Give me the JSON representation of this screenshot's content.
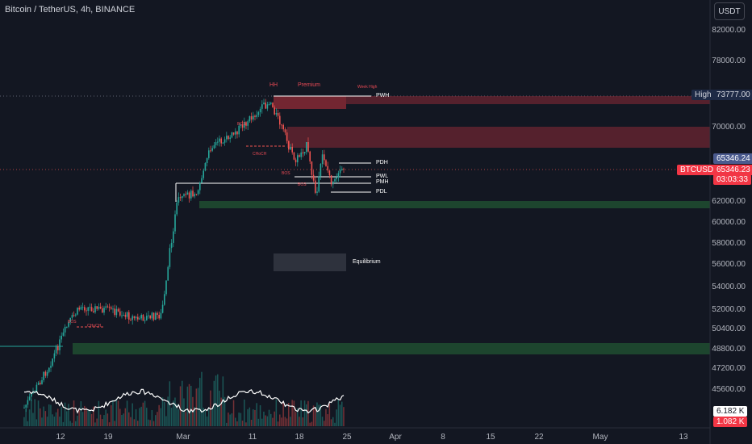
{
  "header": {
    "title": "Bitcoin / TetherUS, 4h, BINANCE",
    "currency": "USDT"
  },
  "price_axis": [
    "82000.00",
    "78000.00",
    "70000.00",
    "62000.00",
    "60000.00",
    "58000.00",
    "56000.00",
    "54000.00",
    "52000.00",
    "50400.00",
    "48800.00",
    "47200.00",
    "45600.00"
  ],
  "time_axis": [
    "12",
    "19",
    "Mar",
    "11",
    "18",
    "25",
    "Apr",
    "8",
    "15",
    "22",
    "May",
    "13"
  ],
  "tags": {
    "high_label": "High",
    "high_value": "73777.00",
    "last_price": "65346.24",
    "symbol": "BTCUSDT",
    "symbol_price": "65346.23",
    "countdown": "03:03:33",
    "vol1": "6.182 K",
    "vol2": "1.082 K"
  },
  "annotations": {
    "pwh": "PWH",
    "pdh": "PDH",
    "pwl": "PWL",
    "pmh": "PMH",
    "pdl": "PDL",
    "equilibrium": "Equilibrium",
    "hh": "HH",
    "premium": "Premium",
    "week_high": "Week High",
    "bos": "BOS",
    "choch": "CHoCH"
  },
  "colors": {
    "background": "#131722",
    "up": "#26a69a",
    "down": "#ef5350",
    "supply": "#8c2a36",
    "demand": "#1f4a30"
  }
}
